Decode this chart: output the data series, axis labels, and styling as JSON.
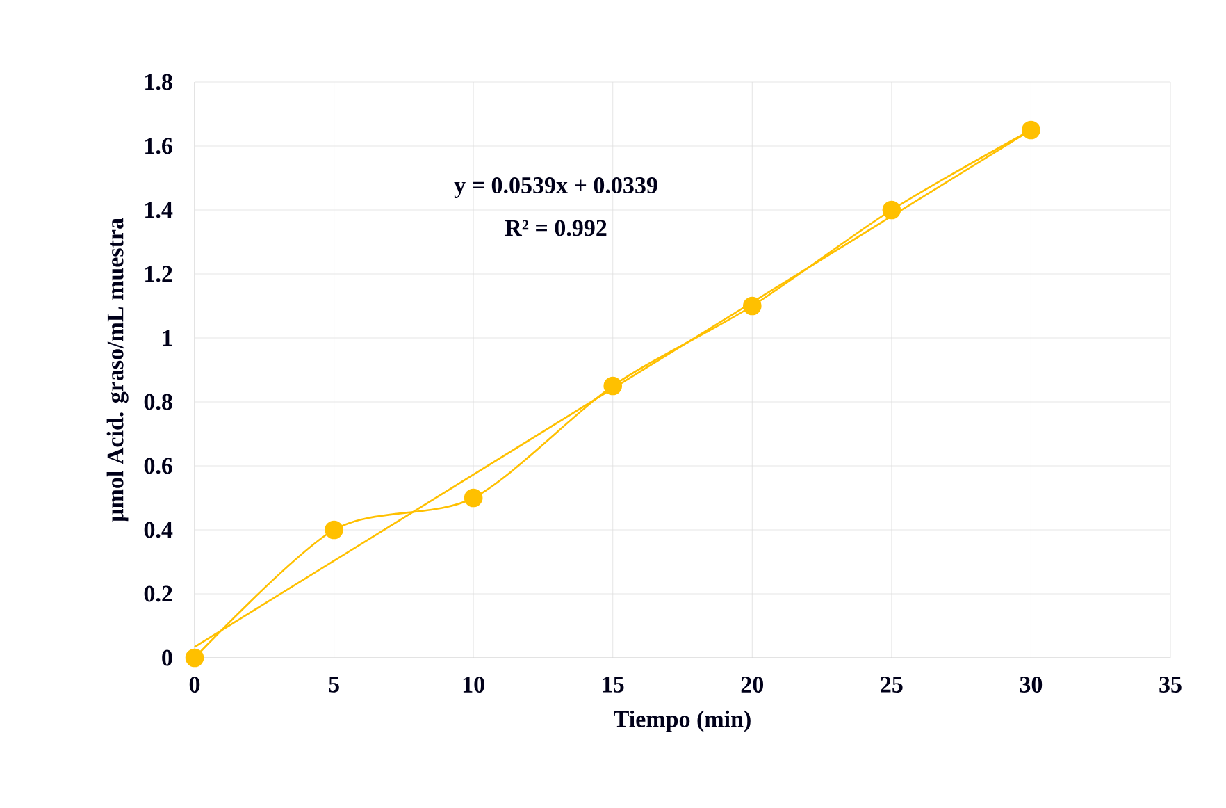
{
  "chart_data": {
    "type": "line",
    "xlabel": "Tiempo (min)",
    "ylabel": "µmol Acid. graso/mL muestra",
    "x": [
      0,
      5,
      10,
      15,
      20,
      25,
      30
    ],
    "series": [
      {
        "color": "#ffc000",
        "values": [
          0,
          0.4,
          0.5,
          0.85,
          1.1,
          1.4,
          1.65
        ]
      },
      {
        "type": "line",
        "color": "#ffc000",
        "x": [
          0,
          30
        ],
        "values": [
          0.034,
          1.65
        ],
        "marker": "none"
      }
    ],
    "annotations": [
      "y = 0.0539x + 0.0339",
      "R² = 0.992"
    ],
    "xlim": [
      0,
      35
    ],
    "ylim": [
      0,
      1.8
    ],
    "xticks": [
      0,
      5,
      10,
      15,
      20,
      25,
      30,
      35
    ],
    "yticks": [
      0,
      0.2,
      0.4,
      0.6,
      0.8,
      1,
      1.2,
      1.4,
      1.6,
      1.8
    ],
    "grid": true,
    "marker": "circle",
    "line_style": "solid"
  }
}
